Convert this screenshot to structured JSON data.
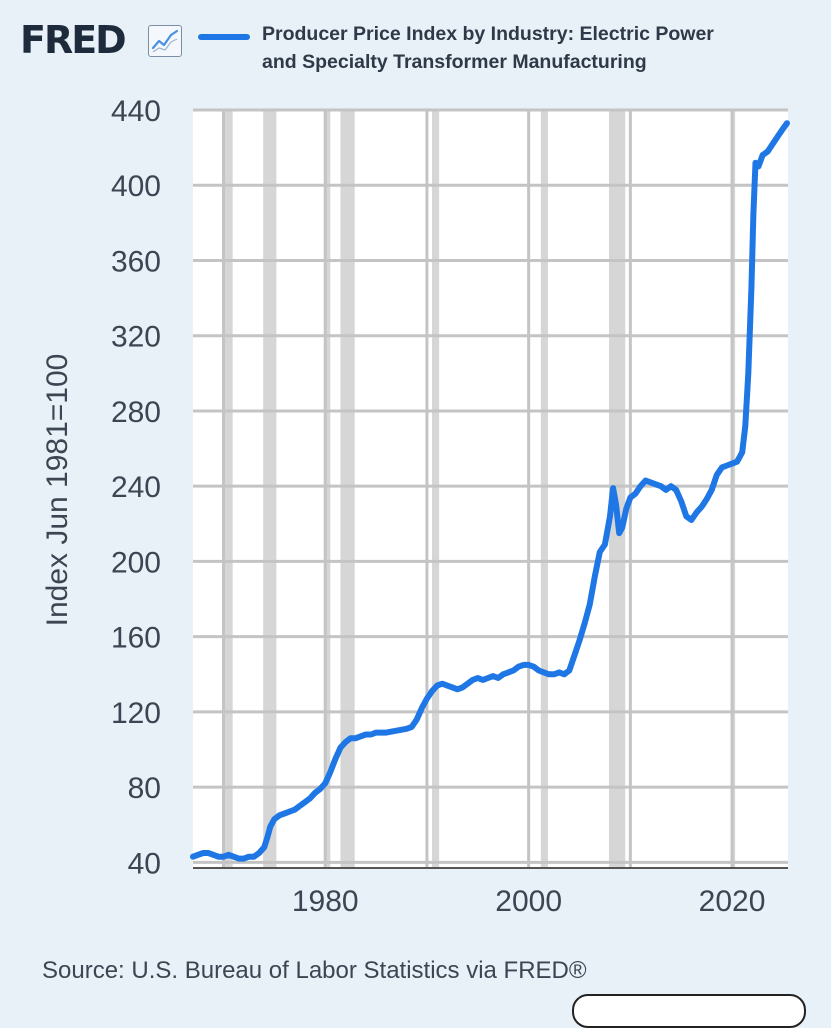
{
  "header": {
    "logo_text": "FRED",
    "logo_icon": "trend-line-icon",
    "legend_line1": "Producer Price Index by Industry: Electric Power",
    "legend_line2": "and Specialty Transformer Manufacturing"
  },
  "footer": {
    "source": "Source: U.S. Bureau of Labor Statistics via FRED®"
  },
  "colors": {
    "line": "#1f77e6",
    "plot_bg": "#ffffff",
    "grid": "#c4c4c4",
    "recession": "#d6d6d6",
    "page_bg": "#e8f0f8"
  },
  "chart_data": {
    "type": "line",
    "title": "",
    "xlabel": "",
    "ylabel": "Index Jun 1981=100",
    "xlim": [
      1967,
      2025.5
    ],
    "ylim": [
      37,
      440
    ],
    "y_ticks": [
      40,
      80,
      120,
      160,
      200,
      240,
      280,
      320,
      360,
      400,
      440
    ],
    "x_ticks": [
      1980,
      2000,
      2020
    ],
    "grid": true,
    "legend_position": "top",
    "recessions": [
      [
        1969.9,
        1970.9
      ],
      [
        1973.9,
        1975.2
      ],
      [
        1980.0,
        1980.5
      ],
      [
        1981.5,
        1982.9
      ],
      [
        1990.5,
        1991.2
      ],
      [
        2001.2,
        2001.9
      ],
      [
        2007.9,
        2009.5
      ],
      [
        2020.1,
        2020.3
      ]
    ],
    "series": [
      {
        "name": "Producer Price Index by Industry: Electric Power and Specialty Transformer Manufacturing",
        "points": [
          [
            1967.0,
            43
          ],
          [
            1967.5,
            44
          ],
          [
            1968.0,
            45
          ],
          [
            1968.5,
            45
          ],
          [
            1969.0,
            44
          ],
          [
            1969.5,
            43
          ],
          [
            1970.0,
            43
          ],
          [
            1970.5,
            44
          ],
          [
            1971.0,
            43
          ],
          [
            1971.5,
            42
          ],
          [
            1972.0,
            42
          ],
          [
            1972.5,
            43
          ],
          [
            1973.0,
            43
          ],
          [
            1973.5,
            45
          ],
          [
            1974.0,
            48
          ],
          [
            1974.3,
            53
          ],
          [
            1974.6,
            59
          ],
          [
            1975.0,
            63
          ],
          [
            1975.5,
            65
          ],
          [
            1976.0,
            66
          ],
          [
            1976.5,
            67
          ],
          [
            1977.0,
            68
          ],
          [
            1977.5,
            70
          ],
          [
            1978.0,
            72
          ],
          [
            1978.5,
            74
          ],
          [
            1979.0,
            77
          ],
          [
            1979.5,
            79
          ],
          [
            1980.0,
            82
          ],
          [
            1980.5,
            88
          ],
          [
            1981.0,
            95
          ],
          [
            1981.5,
            101
          ],
          [
            1982.0,
            104
          ],
          [
            1982.5,
            106
          ],
          [
            1983.0,
            106
          ],
          [
            1983.5,
            107
          ],
          [
            1984.0,
            108
          ],
          [
            1984.5,
            108
          ],
          [
            1985.0,
            109
          ],
          [
            1986.0,
            109
          ],
          [
            1987.0,
            110
          ],
          [
            1988.0,
            111
          ],
          [
            1988.5,
            112
          ],
          [
            1989.0,
            116
          ],
          [
            1989.5,
            122
          ],
          [
            1990.0,
            127
          ],
          [
            1990.5,
            131
          ],
          [
            1991.0,
            134
          ],
          [
            1991.5,
            135
          ],
          [
            1992.0,
            134
          ],
          [
            1992.5,
            133
          ],
          [
            1993.0,
            132
          ],
          [
            1993.5,
            133
          ],
          [
            1994.0,
            135
          ],
          [
            1994.5,
            137
          ],
          [
            1995.0,
            138
          ],
          [
            1995.5,
            137
          ],
          [
            1996.0,
            138
          ],
          [
            1996.5,
            139
          ],
          [
            1997.0,
            138
          ],
          [
            1997.5,
            140
          ],
          [
            1998.0,
            141
          ],
          [
            1998.5,
            142
          ],
          [
            1999.0,
            144
          ],
          [
            1999.5,
            145
          ],
          [
            2000.0,
            145
          ],
          [
            2000.5,
            144
          ],
          [
            2001.0,
            142
          ],
          [
            2001.5,
            141
          ],
          [
            2002.0,
            140
          ],
          [
            2002.5,
            140
          ],
          [
            2003.0,
            141
          ],
          [
            2003.5,
            140
          ],
          [
            2004.0,
            142
          ],
          [
            2004.5,
            150
          ],
          [
            2005.0,
            158
          ],
          [
            2005.5,
            167
          ],
          [
            2006.0,
            177
          ],
          [
            2006.5,
            192
          ],
          [
            2007.0,
            205
          ],
          [
            2007.5,
            209
          ],
          [
            2008.0,
            224
          ],
          [
            2008.3,
            239
          ],
          [
            2008.6,
            230
          ],
          [
            2008.9,
            215
          ],
          [
            2009.2,
            218
          ],
          [
            2009.6,
            228
          ],
          [
            2010.0,
            234
          ],
          [
            2010.5,
            236
          ],
          [
            2011.0,
            240
          ],
          [
            2011.5,
            243
          ],
          [
            2012.0,
            242
          ],
          [
            2012.5,
            241
          ],
          [
            2013.0,
            240
          ],
          [
            2013.5,
            238
          ],
          [
            2014.0,
            240
          ],
          [
            2014.5,
            238
          ],
          [
            2015.0,
            232
          ],
          [
            2015.5,
            224
          ],
          [
            2016.0,
            222
          ],
          [
            2016.5,
            226
          ],
          [
            2017.0,
            229
          ],
          [
            2017.5,
            233
          ],
          [
            2018.0,
            238
          ],
          [
            2018.5,
            246
          ],
          [
            2019.0,
            250
          ],
          [
            2019.5,
            251
          ],
          [
            2020.0,
            252
          ],
          [
            2020.5,
            253
          ],
          [
            2021.0,
            258
          ],
          [
            2021.3,
            272
          ],
          [
            2021.6,
            300
          ],
          [
            2021.9,
            345
          ],
          [
            2022.1,
            385
          ],
          [
            2022.3,
            412
          ],
          [
            2022.6,
            410
          ],
          [
            2023.0,
            416
          ],
          [
            2023.5,
            418
          ],
          [
            2024.0,
            422
          ],
          [
            2024.5,
            426
          ],
          [
            2025.0,
            430
          ],
          [
            2025.4,
            433
          ]
        ]
      }
    ]
  }
}
